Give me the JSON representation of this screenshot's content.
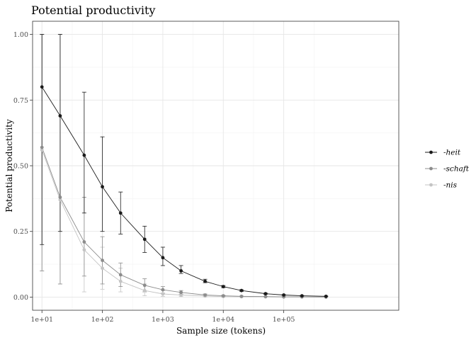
{
  "chart_data": {
    "type": "line",
    "title": "Potential productivity",
    "xlabel": "Sample size (tokens)",
    "ylabel": "Potential productivity",
    "x_scale": "log10",
    "xlim": [
      7,
      8000000
    ],
    "ylim": [
      -0.05,
      1.05
    ],
    "x_ticks": [
      10,
      100,
      1000,
      10000,
      100000
    ],
    "x_tick_labels": [
      "1e+01",
      "1e+02",
      "1e+03",
      "1e+04",
      "1e+05"
    ],
    "y_ticks": [
      0,
      0.25,
      0.5,
      0.75,
      1
    ],
    "y_tick_labels": [
      "0.00",
      "0.25",
      "0.50",
      "0.75",
      "1.00"
    ],
    "grid": true,
    "legend_position": "right",
    "x": [
      10,
      20,
      50,
      100,
      200,
      500,
      1000,
      2000,
      5000,
      10000,
      20000,
      50000,
      100000,
      200000,
      500000
    ],
    "series": [
      {
        "name": "-heit",
        "color": "#1a1a1a",
        "values": [
          0.8,
          0.69,
          0.54,
          0.42,
          0.32,
          0.22,
          0.15,
          0.1,
          0.06,
          0.04,
          0.025,
          0.013,
          0.008,
          0.005,
          0.003
        ],
        "lower": [
          0.2,
          0.25,
          0.32,
          0.25,
          0.24,
          0.17,
          0.12,
          0.09,
          0.055,
          0.036,
          0.022,
          0.011,
          0.007,
          0.004,
          0.002
        ],
        "upper": [
          1.0,
          1.0,
          0.78,
          0.61,
          0.4,
          0.27,
          0.19,
          0.12,
          0.068,
          0.044,
          0.028,
          0.015,
          0.009,
          0.006,
          0.004
        ]
      },
      {
        "name": "-schaft",
        "color": "#8c8c8c",
        "values": [
          0.57,
          0.38,
          0.21,
          0.14,
          0.085,
          0.045,
          0.028,
          0.018,
          0.008,
          0.005,
          0.003,
          0.002,
          0.001,
          0.001,
          0.0005
        ],
        "lower": [
          0.1,
          0.05,
          0.08,
          0.05,
          0.04,
          0.02,
          0.015,
          0.01,
          0.004,
          0.003,
          0.002,
          0.001,
          0.0,
          0.0,
          0.0
        ],
        "upper": [
          1.0,
          1.0,
          0.38,
          0.23,
          0.13,
          0.07,
          0.04,
          0.025,
          0.012,
          0.007,
          0.004,
          0.003,
          0.002,
          0.0015,
          0.001
        ]
      },
      {
        "name": "-nis",
        "color": "#c4c4c4",
        "values": [
          0.56,
          0.37,
          0.18,
          0.11,
          0.06,
          0.025,
          0.012,
          0.008,
          0.004,
          0.002,
          0.0015,
          0.001,
          0.0005,
          0.0003,
          0.0002
        ],
        "lower": [
          0.1,
          0.05,
          0.02,
          0.03,
          0.02,
          0.005,
          0.003,
          0.002,
          0.001,
          0.0,
          0.0,
          0.0,
          0.0,
          0.0,
          0.0
        ],
        "upper": [
          1.0,
          1.0,
          0.38,
          0.19,
          0.11,
          0.05,
          0.025,
          0.015,
          0.008,
          0.005,
          0.003,
          0.002,
          0.001,
          0.0008,
          0.0005
        ]
      }
    ]
  }
}
